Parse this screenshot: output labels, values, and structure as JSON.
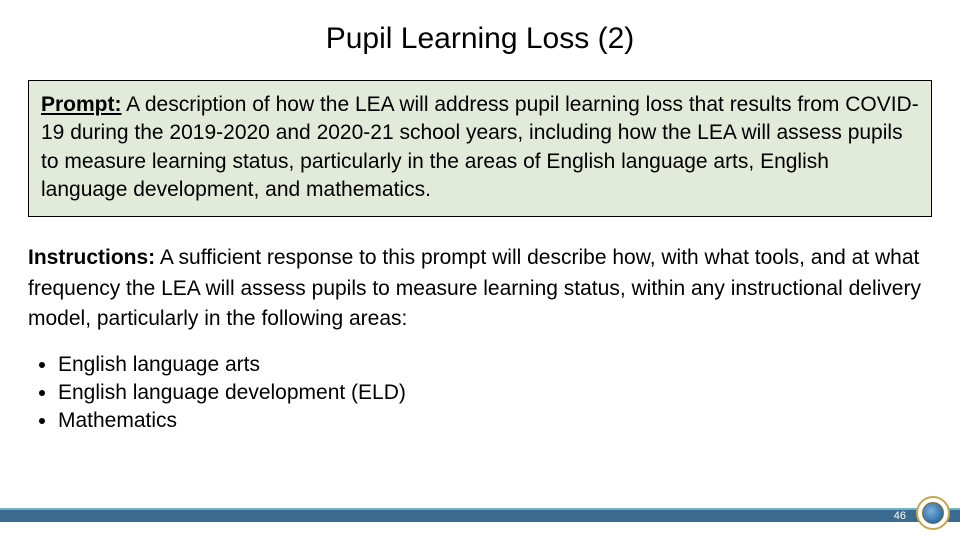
{
  "title": {
    "text": "Pupil Learning Loss (2)",
    "fontsize": 30,
    "color": "#000000",
    "weight": "normal"
  },
  "prompt": {
    "label": "Prompt:",
    "text": " A description of how the LEA will address pupil learning loss that results from COVID-19 during the 2019-2020 and 2020-21 school years, including how the LEA will assess pupils to measure learning status, particularly in the areas of English language arts, English language development, and mathematics.",
    "fontsize": 21,
    "background_color": "#e2ebda",
    "border_color": "#000000",
    "border_width": 1
  },
  "instructions": {
    "label": "Instructions:",
    "text": " A sufficient response to this prompt will describe how, with what tools, and at what frequency the LEA will assess pupils to measure learning status, within any instructional delivery model, particularly in the following areas:",
    "fontsize": 21
  },
  "bullets": {
    "items": [
      "English language arts",
      "English language development (ELD)",
      "Mathematics"
    ],
    "fontsize": 21
  },
  "footer": {
    "page_number": "46",
    "page_number_fontsize": 11,
    "band_color": "#3a6a8f",
    "band_border_top": "#6fb3c8",
    "seal_border_color": "#c9a54a",
    "seal_bg": "#ffffff"
  }
}
